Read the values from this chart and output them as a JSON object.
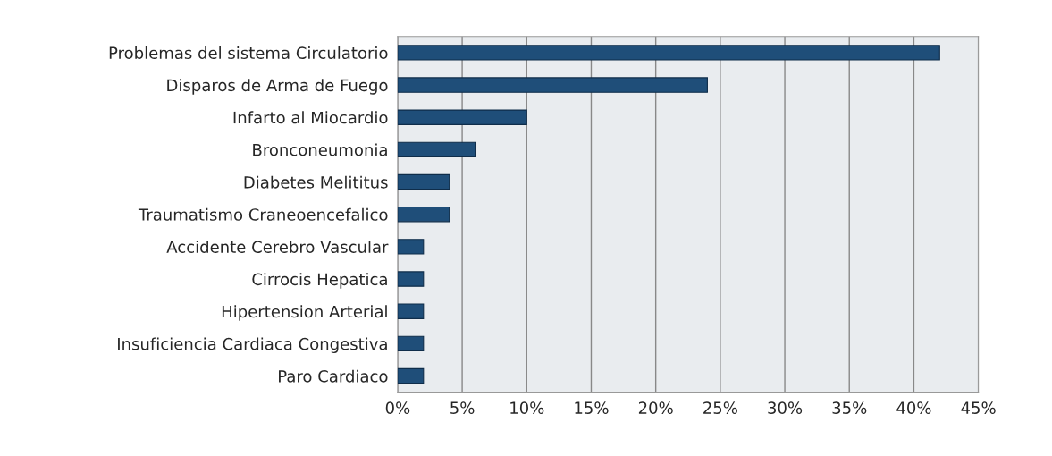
{
  "chart_data": {
    "type": "bar",
    "orientation": "horizontal",
    "categories": [
      "Problemas del sistema Circulatorio",
      "Disparos de Arma de Fuego",
      "Infarto al Miocardio",
      "Bronconeumonia",
      "Diabetes Melititus",
      "Traumatismo Craneoencefalico",
      "Accidente Cerebro Vascular",
      "Cirrocis Hepatica",
      "Hipertension Arterial",
      "Insuficiencia Cardiaca Congestiva",
      "Paro Cardiaco"
    ],
    "values": [
      42,
      24,
      10,
      6,
      4,
      4,
      2,
      2,
      2,
      2,
      2
    ],
    "color": "#1f4e79",
    "xlim": [
      0,
      45
    ],
    "xticks": [
      {
        "value": 0,
        "label": "0%"
      },
      {
        "value": 5,
        "label": "5%"
      },
      {
        "value": 10,
        "label": "10%"
      },
      {
        "value": 15,
        "label": "15%"
      },
      {
        "value": 20,
        "label": "20%"
      },
      {
        "value": 25,
        "label": "25%"
      },
      {
        "value": 30,
        "label": "30%"
      },
      {
        "value": 35,
        "label": "35%"
      },
      {
        "value": 40,
        "label": "40%"
      },
      {
        "value": 45,
        "label": "45%"
      }
    ],
    "grid": "x",
    "legend": false
  }
}
